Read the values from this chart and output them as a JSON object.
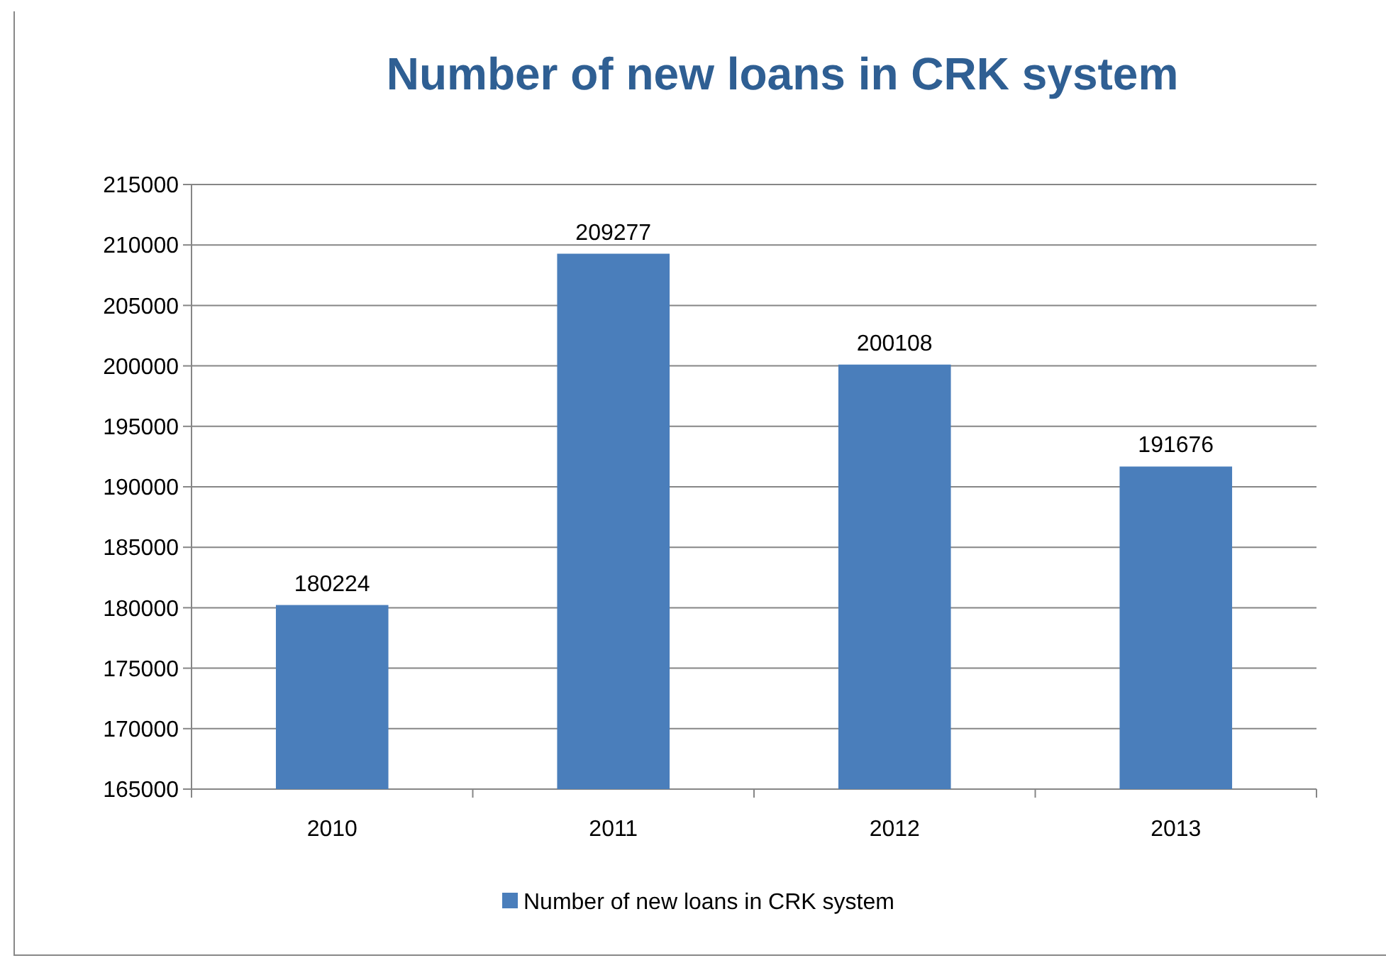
{
  "chart_data": {
    "type": "bar",
    "title": "Number of new loans in CRK system",
    "categories": [
      "2010",
      "2011",
      "2012",
      "2013"
    ],
    "series": [
      {
        "name": "Number of new loans in CRK system",
        "color": "#4a7ebb",
        "values": [
          180224,
          209277,
          200108,
          191676
        ]
      }
    ],
    "ylim": [
      165000,
      215000
    ],
    "yticks": [
      165000,
      170000,
      175000,
      180000,
      185000,
      190000,
      195000,
      200000,
      205000,
      210000,
      215000
    ],
    "grid": "y",
    "data_labels": true,
    "legend": "bottom"
  }
}
